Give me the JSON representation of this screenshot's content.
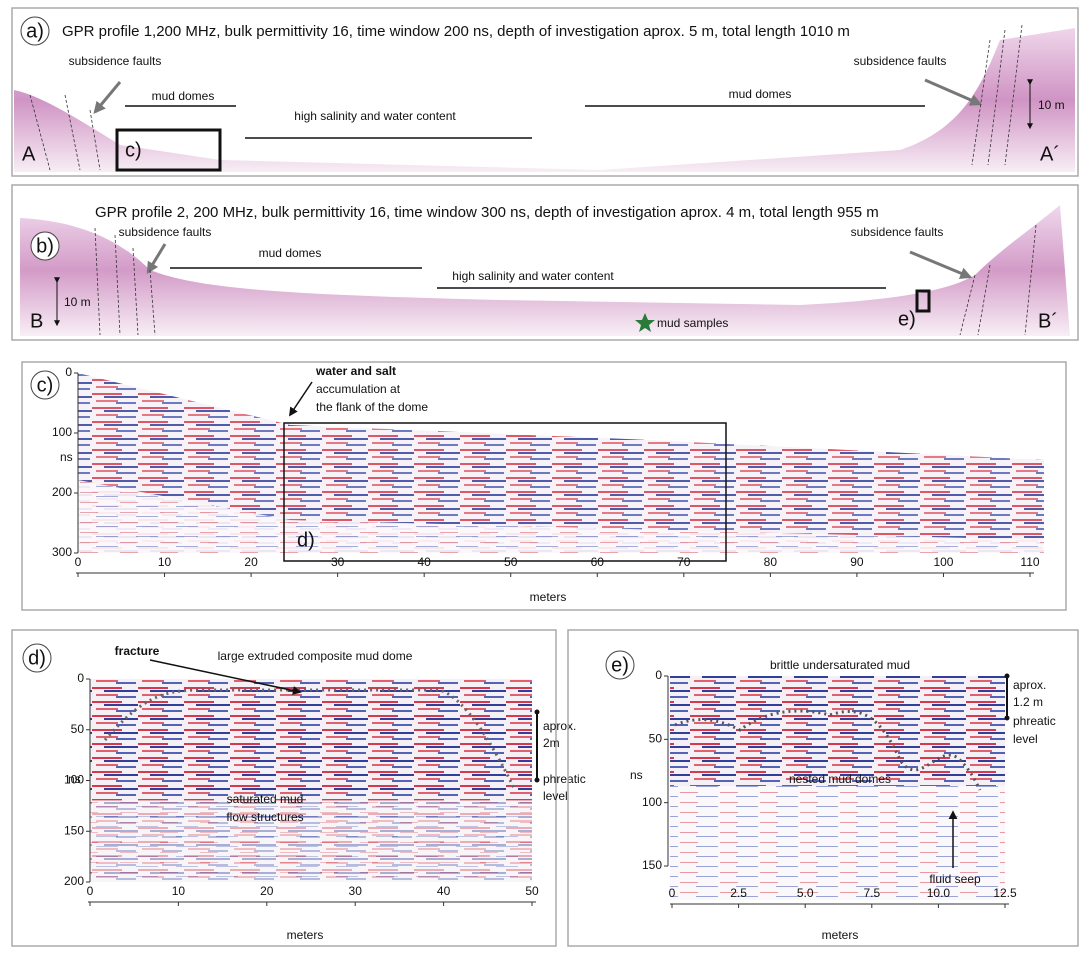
{
  "panels": {
    "a": {
      "label": "a)",
      "title": "GPR profile 1,200 MHz, bulk permittivity 16, time window 200 ns, depth of investigation aprox. 5 m, total length 1010 m",
      "annotations": [
        "subsidence faults",
        "mud domes",
        "high salinity and water content",
        "mud domes",
        "subsidence faults"
      ],
      "scale": "10 m",
      "start": "A",
      "end": "A´",
      "inset": "c)"
    },
    "b": {
      "label": "b)",
      "title": "GPR profile 2, 200 MHz, bulk permittivity 16, time window 300 ns, depth of investigation aprox. 4 m, total length 955 m",
      "annotations": [
        "subsidence faults",
        "mud domes",
        "high salinity and water content",
        "subsidence faults"
      ],
      "scale": "10 m",
      "start": "B",
      "end": "B´",
      "samples": "mud samples",
      "inset": "e)"
    },
    "c": {
      "label": "c)",
      "annotation": [
        "water and salt",
        "accumulation at",
        "the flank of the dome"
      ],
      "inset": "d)",
      "y_label": "ns",
      "x_label": "meters",
      "yticks": [
        0,
        100,
        200,
        300
      ],
      "xticks": [
        0,
        10,
        20,
        30,
        40,
        50,
        60,
        70,
        80,
        90,
        100,
        110
      ]
    },
    "d": {
      "label": "d)",
      "annotations": [
        "fracture",
        "large extruded composite mud dome",
        "saturated mud",
        "flow structures"
      ],
      "thickness": [
        "aprox.",
        "2m"
      ],
      "level": [
        "phreatic",
        "level"
      ],
      "y_label": "ns",
      "x_label": "meters",
      "yticks": [
        0,
        50,
        100,
        150,
        200
      ],
      "xticks": [
        0,
        10,
        20,
        30,
        40,
        50
      ]
    },
    "e": {
      "label": "e)",
      "annotations": [
        "brittle undersaturated mud",
        "nested mud domes",
        "fluid seep"
      ],
      "thickness": [
        "aprox.",
        "1.2 m"
      ],
      "level": [
        "phreatic",
        "level"
      ],
      "y_label": "ns",
      "x_label": "meters",
      "yticks": [
        0,
        50,
        100,
        150
      ],
      "xticks": [
        0,
        2.5,
        {
          "value": 5,
          "label": "5.0"
        },
        7.5,
        {
          "value": 10,
          "label": "10.0"
        },
        12.5
      ]
    }
  }
}
